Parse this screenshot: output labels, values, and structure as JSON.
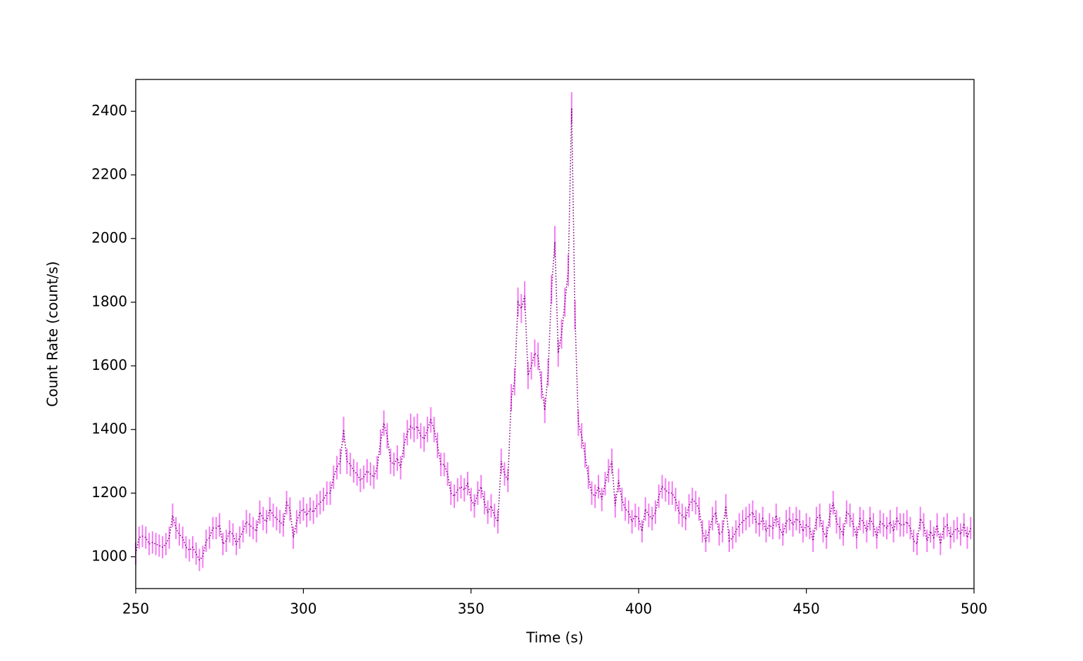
{
  "chart_data": {
    "type": "errorbar_line",
    "xlabel": "Time (s)",
    "ylabel": "Count Rate (count/s)",
    "xlim": [
      250,
      500
    ],
    "ylim": [
      900,
      2500
    ],
    "xticks": [
      250,
      300,
      350,
      400,
      450,
      500
    ],
    "yticks": [
      1000,
      1200,
      1400,
      1600,
      1800,
      2000,
      2200,
      2400
    ],
    "line_color": "#800080",
    "error_color": "#f47cf4",
    "x": [
      250,
      251,
      252,
      253,
      254,
      255,
      256,
      257,
      258,
      259,
      260,
      261,
      262,
      263,
      264,
      265,
      266,
      267,
      268,
      269,
      270,
      271,
      272,
      273,
      274,
      275,
      276,
      277,
      278,
      279,
      280,
      281,
      282,
      283,
      284,
      285,
      286,
      287,
      288,
      289,
      290,
      291,
      292,
      293,
      294,
      295,
      296,
      297,
      298,
      299,
      300,
      301,
      302,
      303,
      304,
      305,
      306,
      307,
      308,
      309,
      310,
      311,
      312,
      313,
      314,
      315,
      316,
      317,
      318,
      319,
      320,
      321,
      322,
      323,
      324,
      325,
      326,
      327,
      328,
      329,
      330,
      331,
      332,
      333,
      334,
      335,
      336,
      337,
      338,
      339,
      340,
      341,
      342,
      343,
      344,
      345,
      346,
      347,
      348,
      349,
      350,
      351,
      352,
      353,
      354,
      355,
      356,
      357,
      358,
      359,
      360,
      361,
      362,
      363,
      364,
      365,
      366,
      367,
      368,
      369,
      370,
      371,
      372,
      373,
      374,
      375,
      376,
      377,
      378,
      379,
      380,
      381,
      382,
      383,
      384,
      385,
      386,
      387,
      388,
      389,
      390,
      391,
      392,
      393,
      394,
      395,
      396,
      397,
      398,
      399,
      400,
      401,
      402,
      403,
      404,
      405,
      406,
      407,
      408,
      409,
      410,
      411,
      412,
      413,
      414,
      415,
      416,
      417,
      418,
      419,
      420,
      421,
      422,
      423,
      424,
      425,
      426,
      427,
      428,
      429,
      430,
      431,
      432,
      433,
      434,
      435,
      436,
      437,
      438,
      439,
      440,
      441,
      442,
      443,
      444,
      445,
      446,
      447,
      448,
      449,
      450,
      451,
      452,
      453,
      454,
      455,
      456,
      457,
      458,
      459,
      460,
      461,
      462,
      463,
      464,
      465,
      466,
      467,
      468,
      469,
      470,
      471,
      472,
      473,
      474,
      475,
      476,
      477,
      478,
      479,
      480,
      481,
      482,
      483,
      484,
      485,
      486,
      487,
      488,
      489,
      490,
      491,
      492,
      493,
      494,
      495,
      496,
      497,
      498,
      499
    ],
    "values": [
      1010,
      1060,
      1065,
      1060,
      1040,
      1045,
      1040,
      1035,
      1030,
      1040,
      1060,
      1130,
      1090,
      1070,
      1060,
      1030,
      1020,
      1030,
      1010,
      990,
      1000,
      1050,
      1060,
      1090,
      1090,
      1100,
      1040,
      1050,
      1080,
      1070,
      1040,
      1060,
      1080,
      1110,
      1100,
      1090,
      1080,
      1140,
      1120,
      1110,
      1150,
      1130,
      1120,
      1110,
      1100,
      1170,
      1150,
      1060,
      1110,
      1140,
      1150,
      1130,
      1150,
      1140,
      1160,
      1170,
      1180,
      1200,
      1200,
      1250,
      1280,
      1300,
      1400,
      1300,
      1290,
      1270,
      1260,
      1240,
      1250,
      1270,
      1260,
      1250,
      1280,
      1360,
      1420,
      1380,
      1300,
      1290,
      1310,
      1280,
      1350,
      1390,
      1410,
      1400,
      1410,
      1380,
      1370,
      1400,
      1430,
      1400,
      1350,
      1290,
      1290,
      1260,
      1200,
      1190,
      1210,
      1220,
      1210,
      1230,
      1180,
      1160,
      1200,
      1220,
      1170,
      1140,
      1160,
      1130,
      1110,
      1300,
      1260,
      1240,
      1500,
      1550,
      1800,
      1780,
      1820,
      1570,
      1600,
      1640,
      1630,
      1540,
      1460,
      1580,
      1840,
      1990,
      1640,
      1700,
      1800,
      1900,
      2410,
      1760,
      1420,
      1380,
      1320,
      1250,
      1200,
      1190,
      1220,
      1180,
      1230,
      1270,
      1300,
      1160,
      1240,
      1180,
      1150,
      1140,
      1110,
      1130,
      1120,
      1080,
      1150,
      1130,
      1120,
      1140,
      1190,
      1220,
      1210,
      1200,
      1200,
      1180,
      1140,
      1130,
      1120,
      1160,
      1180,
      1170,
      1150,
      1080,
      1050,
      1080,
      1120,
      1140,
      1070,
      1080,
      1160,
      1050,
      1060,
      1080,
      1100,
      1110,
      1120,
      1130,
      1140,
      1110,
      1100,
      1120,
      1080,
      1100,
      1090,
      1130,
      1090,
      1070,
      1110,
      1120,
      1100,
      1120,
      1110,
      1080,
      1100,
      1090,
      1050,
      1120,
      1130,
      1080,
      1060,
      1130,
      1170,
      1110,
      1090,
      1070,
      1140,
      1130,
      1100,
      1060,
      1120,
      1110,
      1080,
      1120,
      1100,
      1060,
      1110,
      1100,
      1090,
      1110,
      1080,
      1120,
      1100,
      1100,
      1110,
      1090,
      1050,
      1040,
      1120,
      1100,
      1050,
      1080,
      1060,
      1100,
      1040,
      1090,
      1100,
      1060,
      1080,
      1090,
      1070,
      1100,
      1060,
      1090
    ],
    "errors": [
      35,
      35,
      35,
      35,
      35,
      35,
      35,
      35,
      35,
      35,
      35,
      37,
      35,
      35,
      35,
      35,
      35,
      35,
      35,
      35,
      35,
      35,
      35,
      35,
      35,
      37,
      35,
      35,
      35,
      35,
      35,
      35,
      35,
      37,
      37,
      35,
      35,
      37,
      37,
      37,
      37,
      37,
      37,
      37,
      37,
      37,
      37,
      35,
      37,
      37,
      37,
      37,
      37,
      37,
      37,
      37,
      37,
      37,
      37,
      37,
      37,
      40,
      40,
      40,
      37,
      37,
      37,
      37,
      37,
      37,
      37,
      37,
      37,
      40,
      40,
      40,
      40,
      37,
      40,
      37,
      40,
      40,
      40,
      40,
      40,
      40,
      40,
      40,
      40,
      40,
      40,
      37,
      37,
      37,
      37,
      37,
      37,
      37,
      37,
      37,
      37,
      37,
      37,
      37,
      37,
      37,
      37,
      37,
      37,
      40,
      37,
      37,
      43,
      43,
      46,
      46,
      46,
      43,
      43,
      43,
      43,
      43,
      40,
      43,
      46,
      50,
      43,
      46,
      46,
      50,
      50,
      46,
      40,
      40,
      40,
      37,
      37,
      37,
      37,
      37,
      37,
      37,
      40,
      37,
      37,
      37,
      37,
      37,
      37,
      37,
      37,
      35,
      37,
      37,
      37,
      37,
      37,
      37,
      37,
      37,
      37,
      37,
      37,
      37,
      37,
      37,
      37,
      37,
      37,
      35,
      35,
      35,
      37,
      37,
      35,
      35,
      37,
      35,
      35,
      35,
      37,
      37,
      37,
      37,
      37,
      37,
      37,
      37,
      35,
      37,
      35,
      37,
      35,
      35,
      37,
      37,
      37,
      37,
      37,
      35,
      37,
      35,
      35,
      37,
      37,
      35,
      35,
      37,
      37,
      37,
      35,
      35,
      37,
      37,
      37,
      35,
      37,
      37,
      35,
      37,
      37,
      35,
      37,
      37,
      35,
      37,
      35,
      37,
      37,
      37,
      37,
      35,
      35,
      35,
      37,
      37,
      35,
      35,
      35,
      37,
      35,
      35,
      37,
      35,
      35,
      35,
      35,
      37,
      35,
      35
    ]
  }
}
